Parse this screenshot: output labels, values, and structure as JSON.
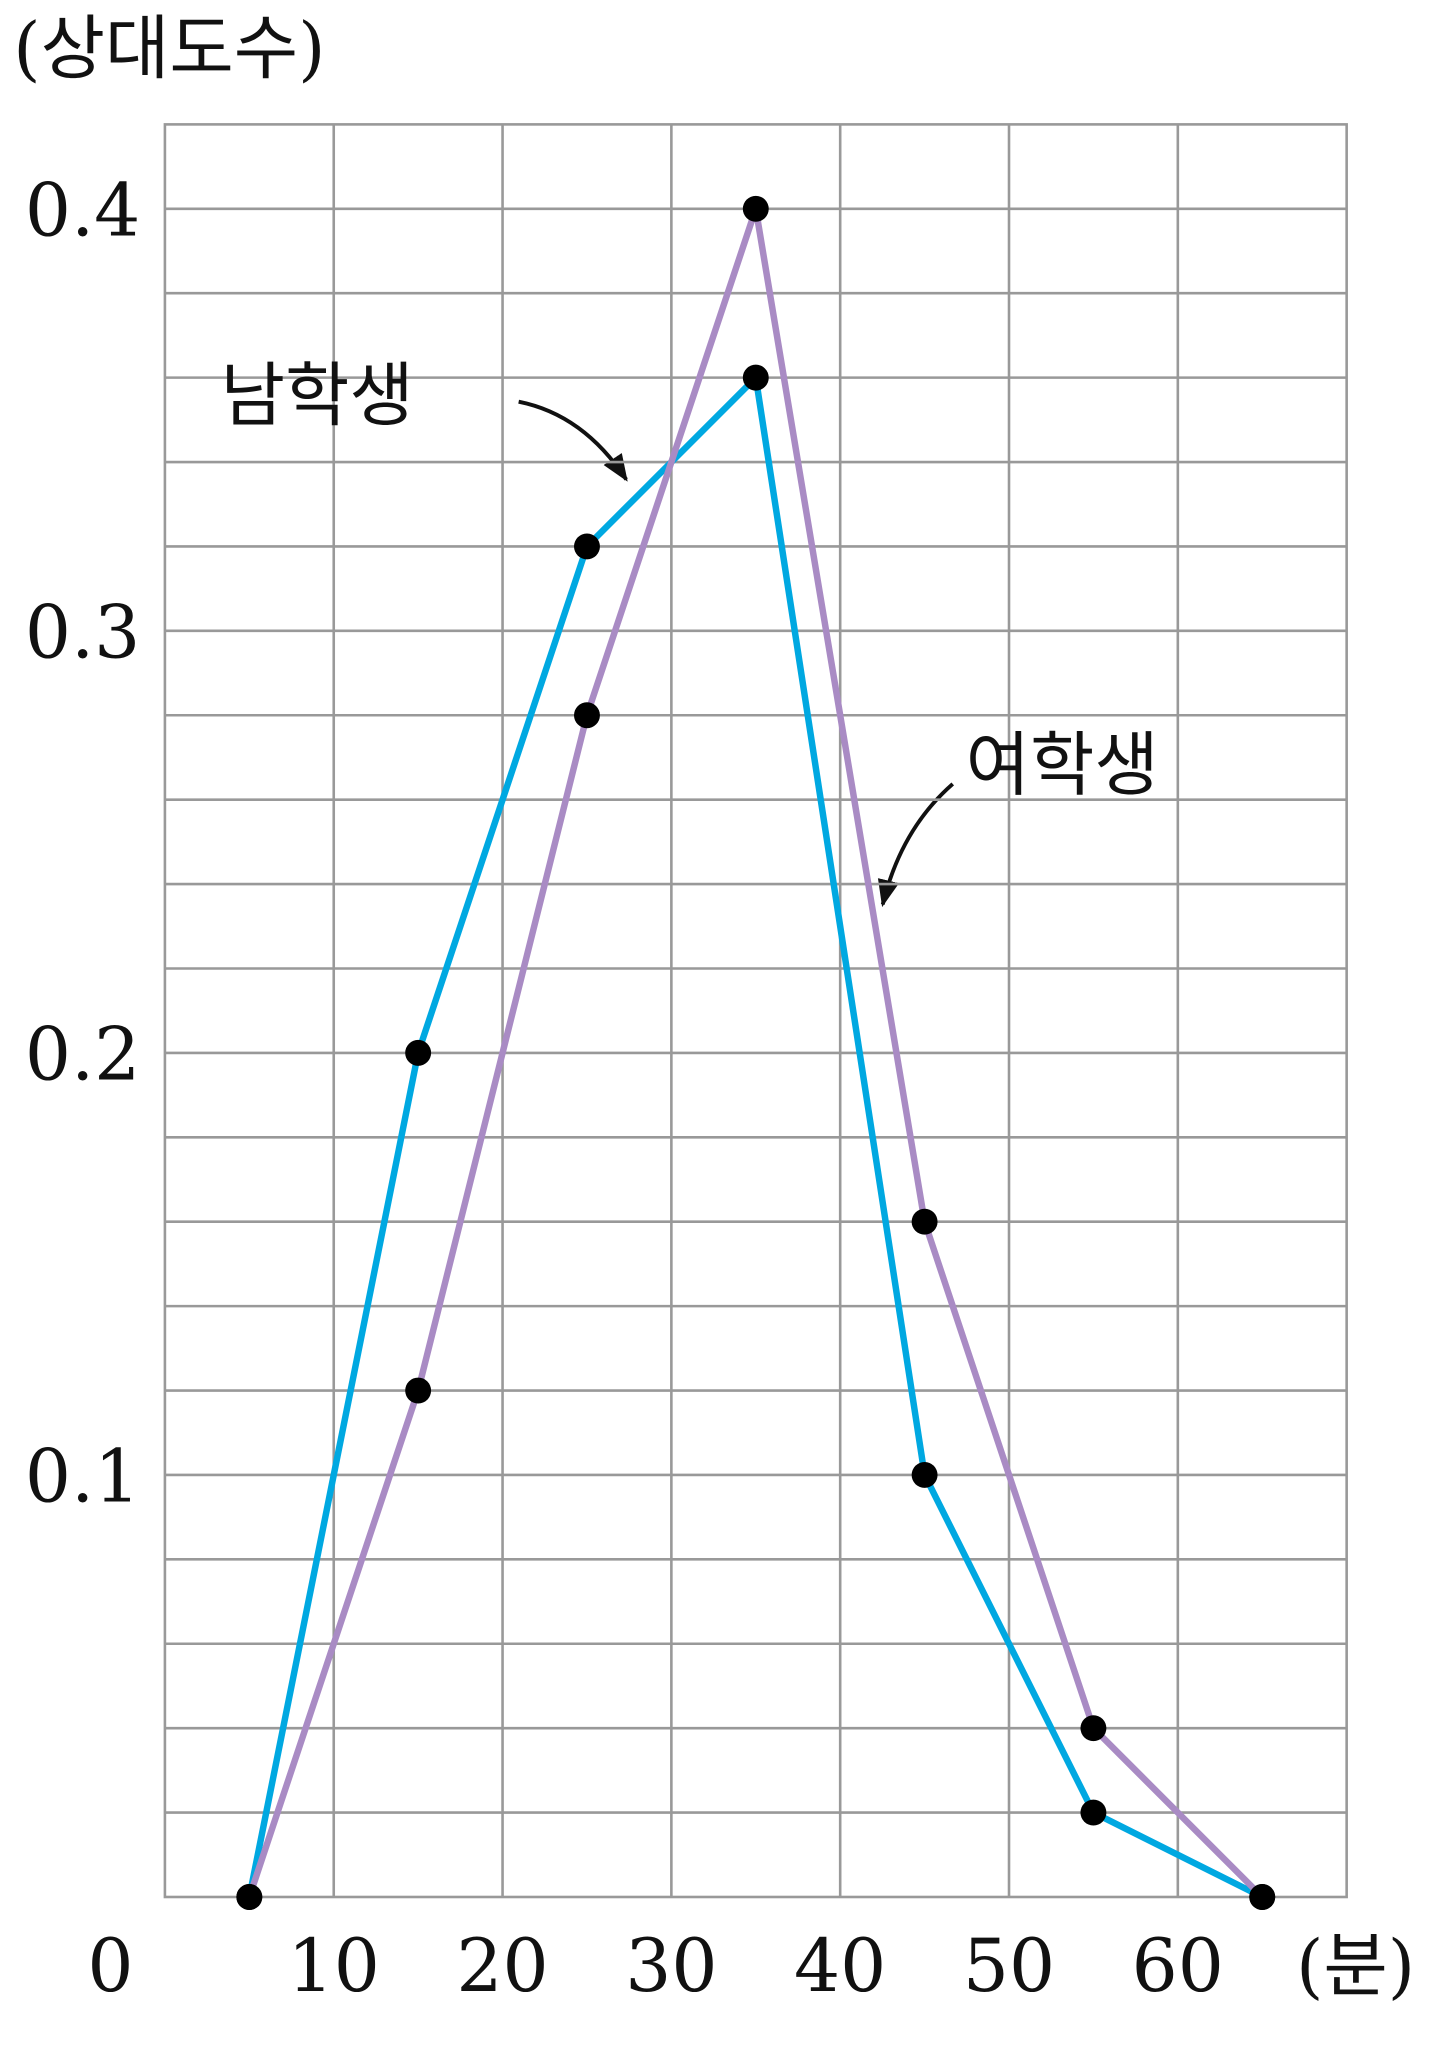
{
  "chart_data": {
    "type": "line",
    "ylabel": "(상대도수)",
    "xlabel": "(분)",
    "x": [
      5,
      15,
      25,
      35,
      45,
      55,
      65
    ],
    "series": [
      {
        "name": "남학생",
        "color": "#00a8e1",
        "values": [
          0,
          0.2,
          0.32,
          0.36,
          0.1,
          0.02,
          0
        ]
      },
      {
        "name": "여학생",
        "color": "#a98bc4",
        "values": [
          0,
          0.12,
          0.28,
          0.4,
          0.16,
          0.04,
          0
        ]
      }
    ],
    "xlim": [
      0,
      70
    ],
    "ylim": [
      0,
      0.42
    ],
    "xticks": [
      0,
      10,
      20,
      30,
      40,
      50,
      60
    ],
    "yticks": [
      0.1,
      0.2,
      0.3,
      0.4
    ],
    "xgrid": [
      10,
      20,
      30,
      40,
      50,
      60
    ],
    "ygrid": [
      0.02,
      0.04,
      0.06,
      0.08,
      0.1,
      0.12,
      0.14,
      0.16,
      0.18,
      0.2,
      0.22,
      0.24,
      0.26,
      0.28,
      0.3,
      0.32,
      0.34,
      0.36,
      0.38,
      0.4
    ],
    "grid": true,
    "markers": true
  }
}
